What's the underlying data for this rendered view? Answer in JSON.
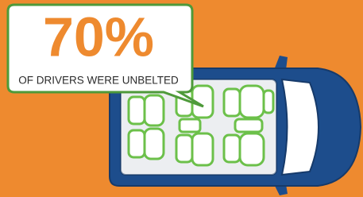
{
  "callout": {
    "value": "70%",
    "caption": "OF DRIVERS WERE UNBELTED"
  }
}
